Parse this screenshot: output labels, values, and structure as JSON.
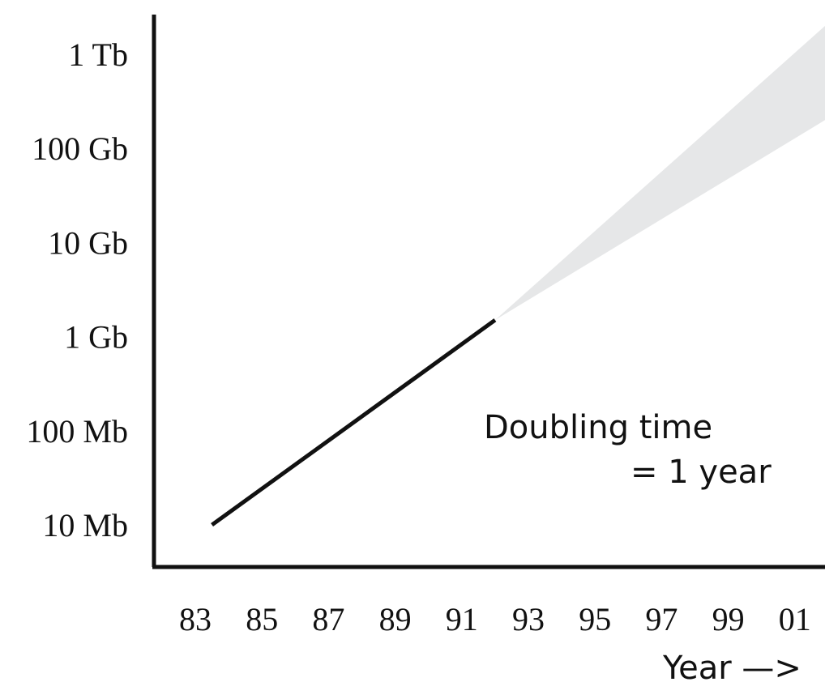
{
  "chart_data": {
    "type": "line",
    "title": "",
    "xlabel": "Year —>",
    "ylabel": "",
    "y_scale": "log",
    "x_ticks": [
      "83",
      "85",
      "87",
      "89",
      "91",
      "93",
      "95",
      "97",
      "99",
      "01"
    ],
    "y_ticks": [
      "10 Mb",
      "100 Mb",
      "1 Gb",
      "10 Gb",
      "100 Gb",
      "1 Tb"
    ],
    "grid": false,
    "series": [
      {
        "points": [
          {
            "x": 1983.5,
            "y": "10 Mb"
          },
          {
            "x": 1992,
            "y": "1.5 Gb"
          }
        ]
      }
    ],
    "projection": {
      "from": {
        "x": 1992,
        "y": "1.5 Gb"
      },
      "to_upper": {
        "x": 2002,
        "y": "2 Tb"
      },
      "to_lower": {
        "x": 2002,
        "y": "200 Gb"
      }
    },
    "annotation": [
      "Doubling time",
      "= 1 year"
    ],
    "colors": {
      "line": "#111111",
      "projection": "#e6e7e8",
      "axis": "#111111"
    }
  }
}
